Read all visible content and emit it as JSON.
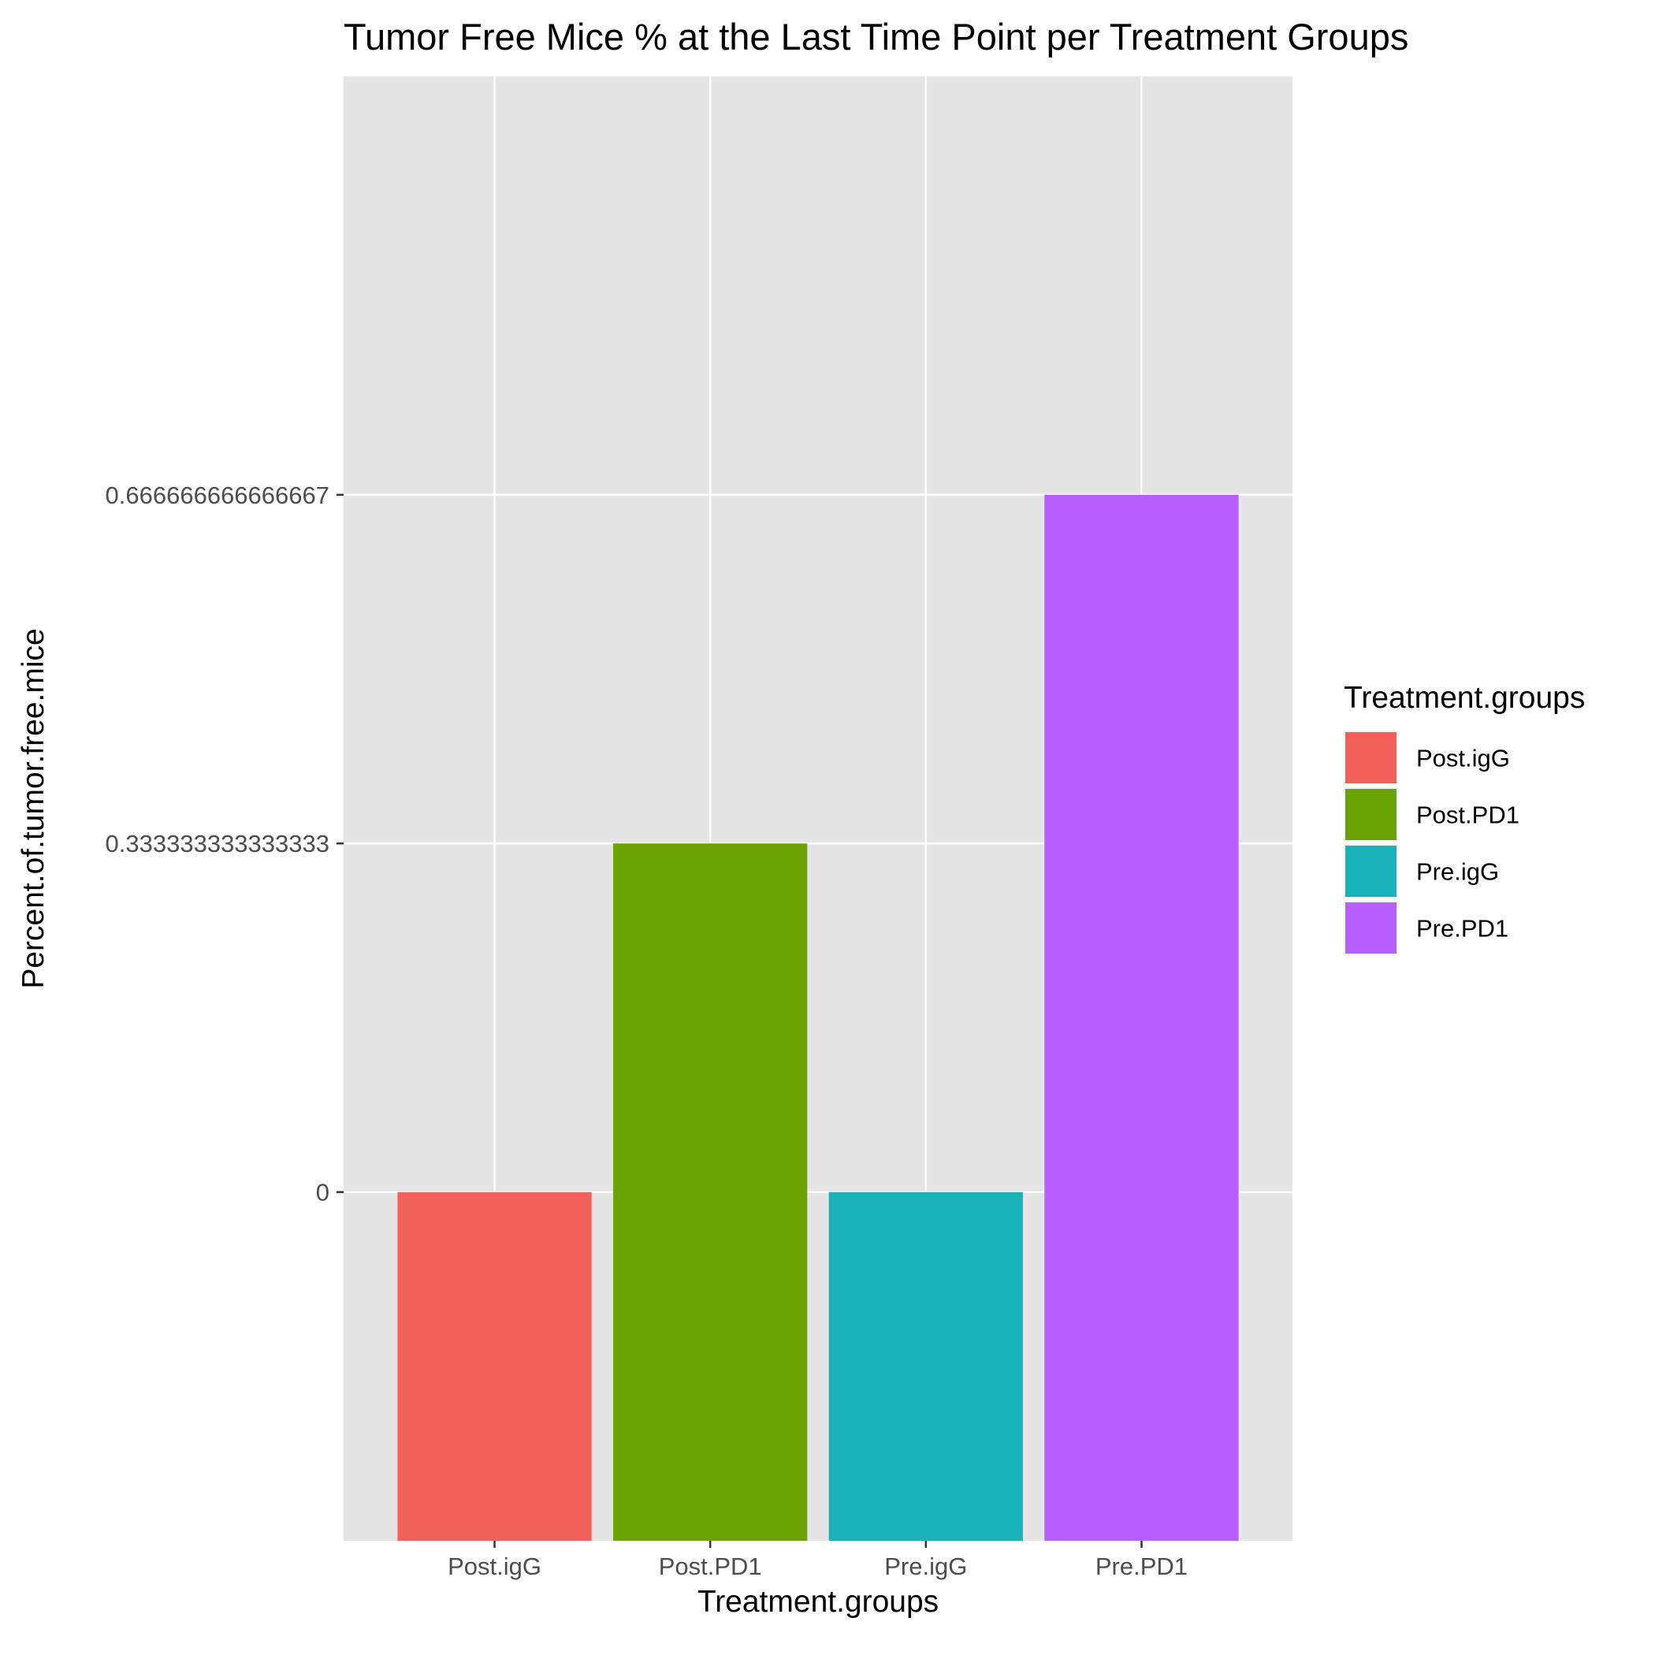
{
  "chart_data": {
    "type": "bar",
    "title": "Tumor Free Mice % at the Last Time Point per Treatment Groups",
    "xlabel": "Treatment.groups",
    "ylabel": "Percent.of.tumor.free.mice",
    "categories": [
      "Post.igG",
      "Post.PD1",
      "Pre.igG",
      "Pre.PD1"
    ],
    "y_tick_labels": [
      "0",
      "0.333333333333333",
      "0.666666666666667"
    ],
    "bars": [
      {
        "category": "Post.igG",
        "bottom": "baseline",
        "top": "0",
        "color": "#F2605C"
      },
      {
        "category": "Post.PD1",
        "bottom": "baseline",
        "top": "0.333333333333333",
        "color": "#6BA304"
      },
      {
        "category": "Pre.igG",
        "bottom": "baseline",
        "top": "0",
        "color": "#19B2B8"
      },
      {
        "category": "Pre.PD1",
        "bottom": "baseline",
        "top": "0.666666666666667",
        "color": "#B760FF"
      }
    ],
    "y_axis_note_values_discrete": true,
    "legend": {
      "title": "Treatment.groups",
      "position": "right",
      "items": [
        {
          "label": "Post.igG",
          "color": "#F2605C"
        },
        {
          "label": "Post.PD1",
          "color": "#6BA304"
        },
        {
          "label": "Pre.igG",
          "color": "#19B2B8"
        },
        {
          "label": "Pre.PD1",
          "color": "#B760FF"
        }
      ]
    },
    "grid": true,
    "panel_background": "#E5E5E5"
  }
}
